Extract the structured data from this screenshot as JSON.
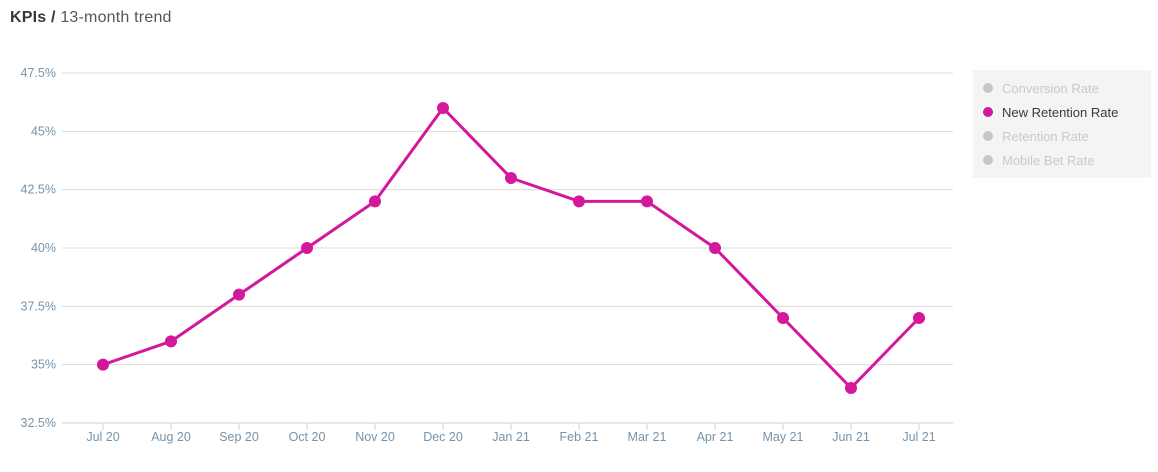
{
  "header": {
    "title_bold": "KPIs /",
    "title_rest": "13-month trend"
  },
  "legend": {
    "position": "right",
    "items": [
      {
        "label": "Conversion Rate",
        "active": false
      },
      {
        "label": "New Retention Rate",
        "active": true
      },
      {
        "label": "Retention Rate",
        "active": false
      },
      {
        "label": "Mobile Bet Rate",
        "active": false
      }
    ]
  },
  "chart_data": {
    "type": "line",
    "title": "KPIs / 13-month trend",
    "categories": [
      "Jul 20",
      "Aug 20",
      "Sep 20",
      "Oct 20",
      "Nov 20",
      "Dec 20",
      "Jan 21",
      "Feb 21",
      "Mar 21",
      "Apr 21",
      "May 21",
      "Jun 21",
      "Jul 21"
    ],
    "series": [
      {
        "name": "New Retention Rate",
        "values": [
          35,
          36,
          38,
          40,
          42,
          46,
          43,
          42,
          42,
          40,
          37,
          34,
          37
        ],
        "color": "#d4189c"
      }
    ],
    "xlabel": "",
    "ylabel": "",
    "ylim": [
      32.5,
      47.5
    ],
    "yticks": [
      32.5,
      35,
      37.5,
      40,
      42.5,
      45,
      47.5
    ],
    "ytick_suffix": "%",
    "grid": true,
    "legend_position": "right"
  },
  "colors": {
    "accent": "#d4189c",
    "axis_label": "#7793a9",
    "gridline": "#dcdcdc",
    "axis_line": "#d2d2d2",
    "legend_bg": "#f4f4f4",
    "legend_inactive": "#c6c6c6",
    "legend_active_text": "#3a3a3a",
    "background": "#ffffff"
  }
}
